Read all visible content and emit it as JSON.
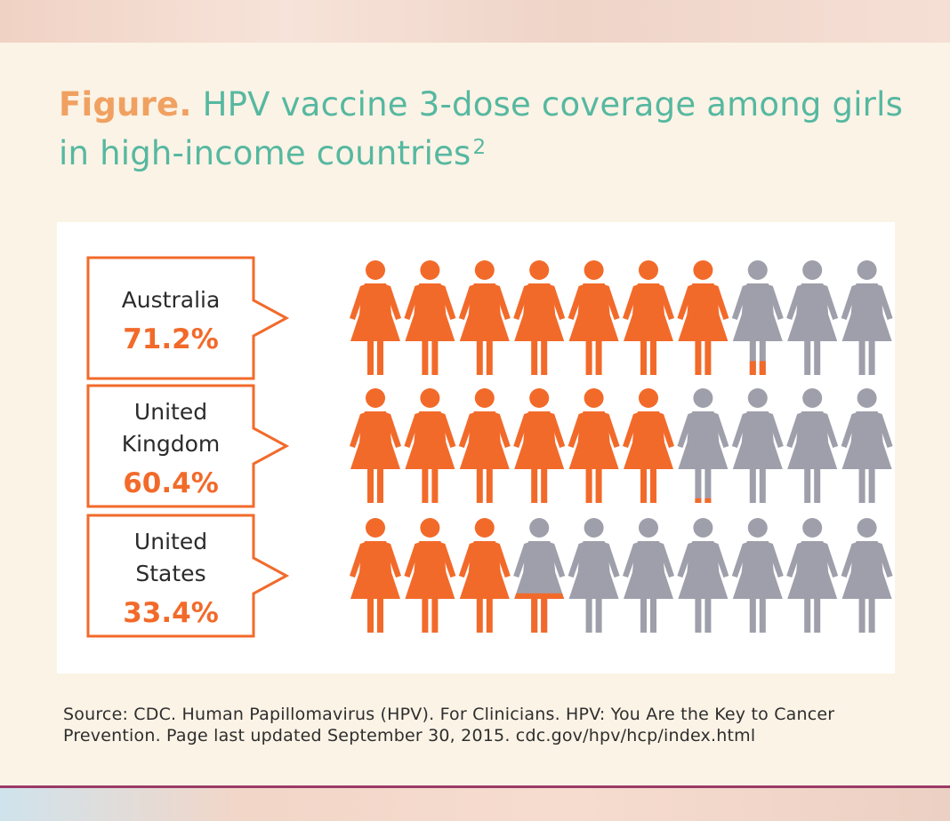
{
  "title": {
    "figure_label": "Figure.",
    "text": "HPV vaccine 3-dose coverage among girls in high-income countries",
    "superscript": "2"
  },
  "source": "Source: CDC. Human Papillomavirus (HPV). For Clinicians. HPV: You Are the Key to Cancer Prevention. Page last updated September 30, 2015. cdc.gov/hpv/hcp/index.html",
  "colors": {
    "filled": "#f26a2a",
    "unfilled": "#9f9fab",
    "label_border": "#f26a2a",
    "country_text": "#2b2b2b",
    "value_text": "#f26a2a"
  },
  "chart_data": {
    "type": "pictograph",
    "icons_per_row": 10,
    "icon": "girl-figure-icon",
    "rows": [
      {
        "label_lines": [
          "Australia"
        ],
        "value_label": "71.2%",
        "value": 71.2
      },
      {
        "label_lines": [
          "United",
          "Kingdom"
        ],
        "value_label": "60.4%",
        "value": 60.4
      },
      {
        "label_lines": [
          "United",
          "States"
        ],
        "value_label": "33.4%",
        "value": 33.4
      }
    ]
  }
}
